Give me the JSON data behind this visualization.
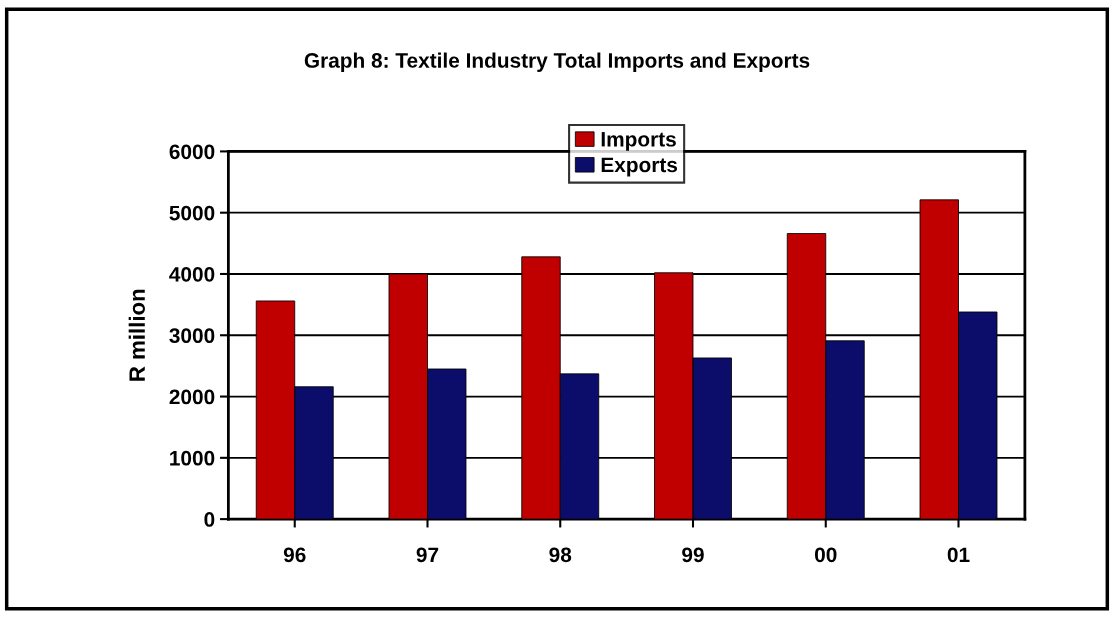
{
  "chart_data": {
    "type": "bar",
    "title": "Graph 8: Textile Industry Total Imports and Exports",
    "ylabel": "R million",
    "categories": [
      "96",
      "97",
      "98",
      "99",
      "00",
      "01"
    ],
    "series": [
      {
        "name": "Imports",
        "color": "#c00000",
        "values": [
          3560,
          4000,
          4280,
          4020,
          4660,
          5210
        ]
      },
      {
        "name": "Exports",
        "color": "#0c0c6a",
        "values": [
          2160,
          2450,
          2370,
          2630,
          2910,
          3380
        ]
      }
    ],
    "ylim": [
      0,
      6000
    ],
    "yticks": [
      0,
      1000,
      2000,
      3000,
      4000,
      5000,
      6000
    ],
    "grid": "y",
    "legend": "top"
  }
}
